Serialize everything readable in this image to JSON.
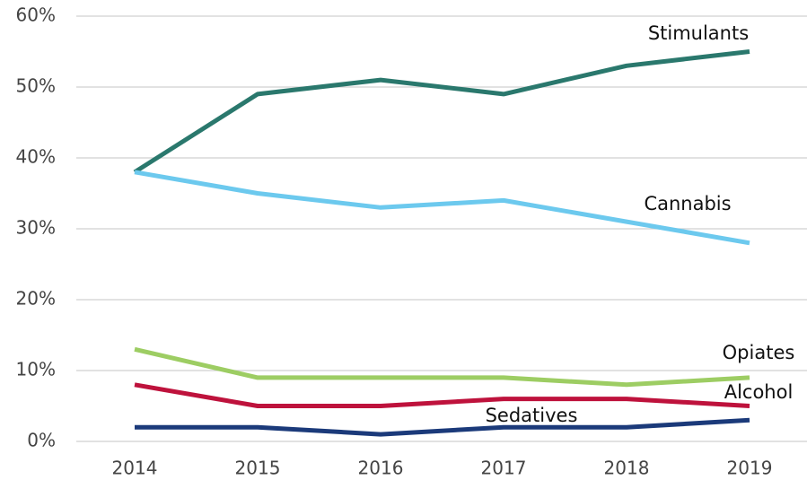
{
  "chart_data": {
    "type": "line",
    "categories": [
      "2014",
      "2015",
      "2016",
      "2017",
      "2018",
      "2019"
    ],
    "series": [
      {
        "name": "Stimulants",
        "color": "#2a786d",
        "values": [
          38,
          49,
          51,
          49,
          53,
          55
        ]
      },
      {
        "name": "Cannabis",
        "color": "#6cc9ee",
        "values": [
          38,
          35,
          33,
          34,
          31,
          28
        ]
      },
      {
        "name": "Opiates",
        "color": "#9dcd63",
        "values": [
          13,
          9,
          9,
          9,
          8,
          9
        ]
      },
      {
        "name": "Alcohol",
        "color": "#be123c",
        "values": [
          8,
          5,
          5,
          6,
          6,
          5
        ]
      },
      {
        "name": "Sedatives",
        "color": "#1b3a7a",
        "values": [
          2,
          2,
          1,
          2,
          2,
          3
        ]
      }
    ],
    "ylim": [
      0,
      60
    ],
    "yticks": [
      {
        "value": 0,
        "label": "0%"
      },
      {
        "value": 10,
        "label": "10%"
      },
      {
        "value": 20,
        "label": "20%"
      },
      {
        "value": 30,
        "label": "30%"
      },
      {
        "value": 40,
        "label": "40%"
      },
      {
        "value": 50,
        "label": "50%"
      },
      {
        "value": 60,
        "label": "60%"
      }
    ],
    "grid": true
  }
}
